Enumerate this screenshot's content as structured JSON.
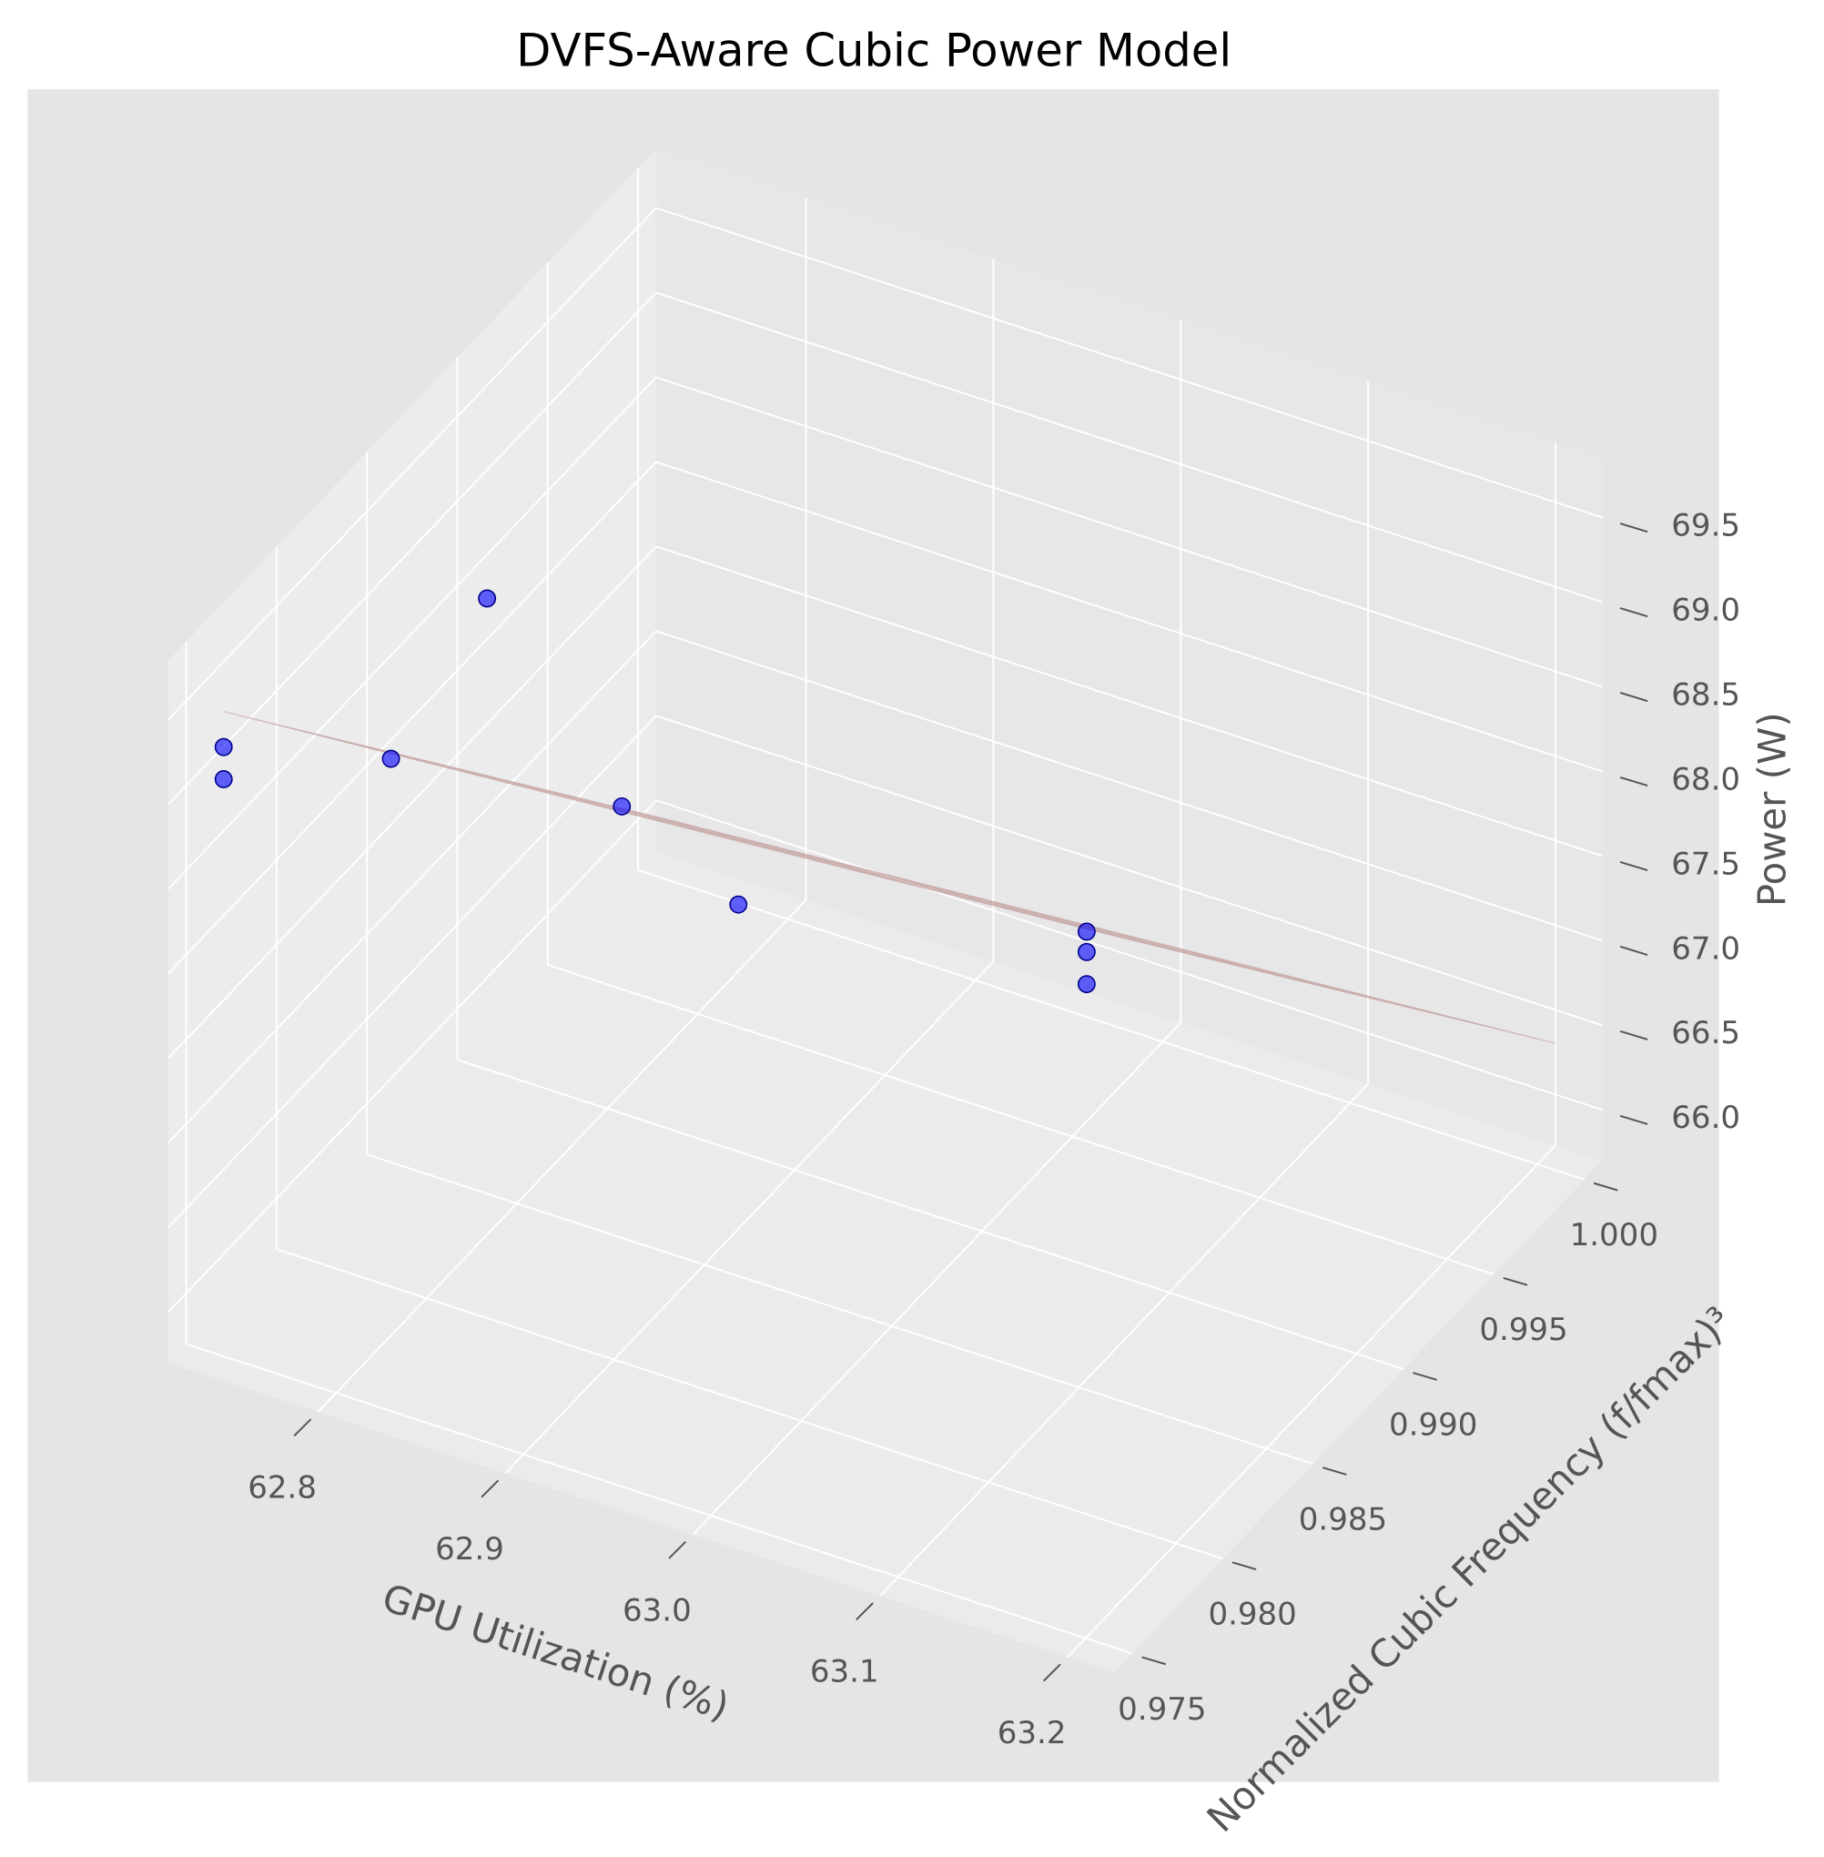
{
  "chart_data": {
    "type": "scatter3d",
    "title": "DVFS-Aware Cubic Power Model",
    "xlabel": "GPU Utilization (%)",
    "ylabel": "Normalized Cubic Frequency (f/fmax)³",
    "zlabel": "Power (W)",
    "x": [
      62.74,
      62.74,
      62.81,
      62.76,
      62.885,
      62.87,
      63.08,
      63.08,
      63.08
    ],
    "y": [
      0.975,
      0.975,
      0.977,
      0.9875,
      0.982,
      0.99,
      0.9875,
      0.9875,
      0.9875
    ],
    "z": [
      69.3,
      69.11,
      69.26,
      68.85,
      68.69,
      67.16,
      68.04,
      67.92,
      67.73
    ],
    "color": "#0000ff",
    "surface": {
      "x": [
        62.74,
        63.21
      ],
      "y": [
        0.975,
        1.0
      ],
      "z": [
        [
          69.51,
          69.9
        ],
        [
          66.06,
          66.45
        ]
      ],
      "color": "#bc8f8f"
    },
    "xlim": [
      62.72,
      63.225
    ],
    "ylim": [
      0.974,
      1.001
    ],
    "zlim": [
      65.7,
      69.85
    ],
    "xticks": [
      62.8,
      62.9,
      {
        "value": 63,
        "label": "63.0"
      },
      63.1,
      63.2
    ],
    "yticks": [
      0.975,
      {
        "value": 0.98,
        "label": "0.980"
      },
      0.985,
      {
        "value": 0.99,
        "label": "0.990"
      },
      0.995,
      {
        "value": 1,
        "label": "1.000"
      }
    ],
    "zticks": [
      {
        "value": 66,
        "label": "66.0"
      },
      66.5,
      {
        "value": 67,
        "label": "67.0"
      },
      67.5,
      {
        "value": 68,
        "label": "68.0"
      },
      68.5,
      {
        "value": 69,
        "label": "69.0"
      },
      69.5
    ],
    "grid": true
  }
}
